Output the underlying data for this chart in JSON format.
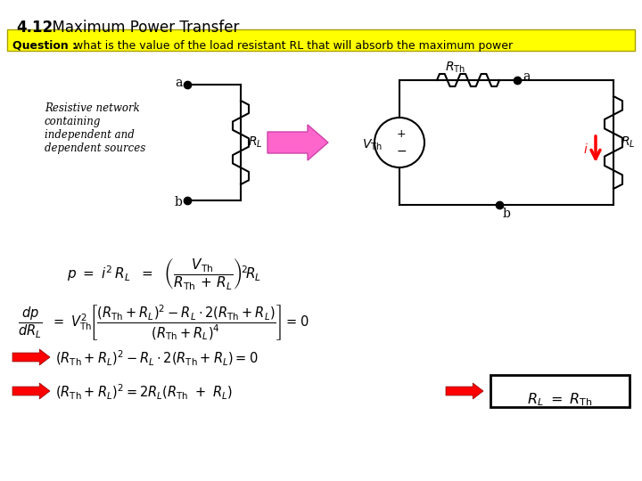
{
  "title_bold": "4.12",
  "title_rest": "  Maximum Power Transfer",
  "question_bold": "Question : ",
  "question_rest": "what is the value of the load resistant RL that will absorb the maximum power",
  "bg_color": "#ffffff",
  "highlight_color": "#ffff00",
  "text_color": "#000000"
}
